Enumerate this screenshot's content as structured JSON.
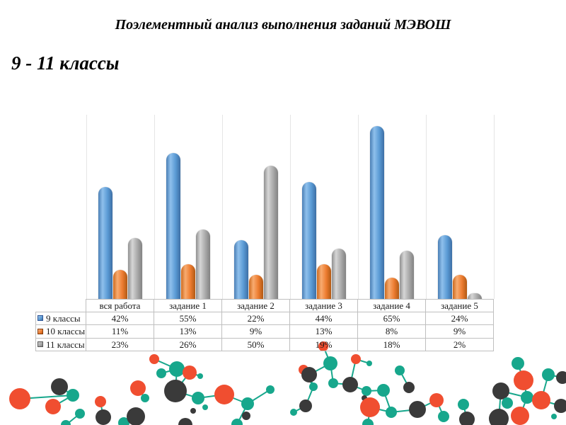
{
  "slide": {
    "title": "Поэлементный анализ выполнения заданий МЭВОШ",
    "subtitle": "9 - 11 классы"
  },
  "chart_data": {
    "type": "bar",
    "subtype": "3d-cylinder-clustered",
    "categories": [
      "вся работа",
      "задание 1",
      "задание 2",
      "задание 3",
      "задание 4",
      "задание 5"
    ],
    "series": [
      {
        "name": "9 классы",
        "color": "#5B9BD5",
        "values": [
          42,
          55,
          22,
          44,
          65,
          24
        ]
      },
      {
        "name": "10 классы",
        "color": "#ED7D31",
        "values": [
          11,
          13,
          9,
          13,
          8,
          9
        ]
      },
      {
        "name": "11 классы",
        "color": "#A5A5A5",
        "values": [
          23,
          26,
          50,
          19,
          18,
          2
        ]
      }
    ],
    "unit": "%",
    "ylim": [
      0,
      70
    ],
    "value_axis_labels_shown": false,
    "gridlines": "faint vertical category dividers",
    "legend_position": "data-table-left-column",
    "data_table_shown": true
  },
  "decoration": {
    "name": "molecule-network",
    "node_colors": {
      "teal": "#17A78C",
      "red": "#F04E30",
      "dark": "#3A3A3A"
    },
    "line_color": "#17A78C"
  }
}
